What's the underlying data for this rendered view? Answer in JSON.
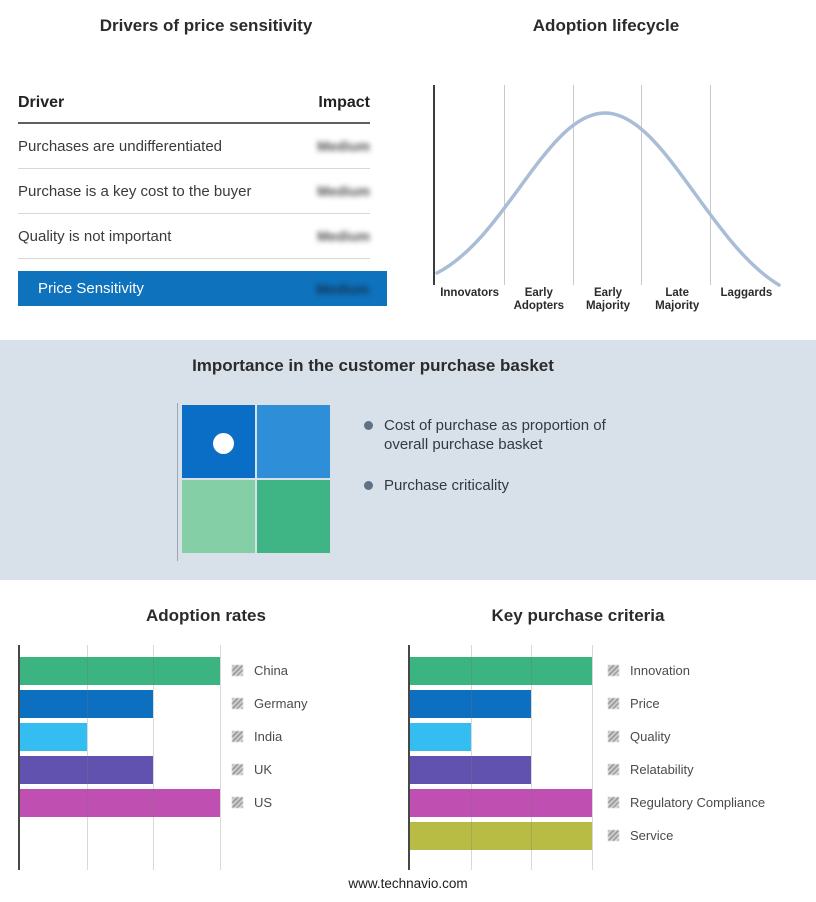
{
  "drivers_panel": {
    "title": "Drivers of price sensitivity",
    "columns": {
      "driver": "Driver",
      "impact": "Impact"
    },
    "rows": [
      {
        "driver": "Purchases are undifferentiated",
        "impact": "Medium"
      },
      {
        "driver": "Purchase is a key cost to the buyer",
        "impact": "Medium"
      },
      {
        "driver": "Quality is not important",
        "impact": "Medium"
      }
    ],
    "summary_row": {
      "label": "Price Sensitivity",
      "impact": "Medium",
      "bg_color": "#0e72bd"
    }
  },
  "lifecycle_panel": {
    "title": "Adoption lifecycle",
    "stages": [
      "Innovators",
      "Early Adopters",
      "Early Majority",
      "Late Majority",
      "Laggards"
    ],
    "curve_color": "#a9bdd6"
  },
  "basket_panel": {
    "title": "Importance in the customer purchase basket",
    "bullets": [
      "Cost of purchase as proportion of overall purchase basket",
      "Purchase criticality"
    ],
    "quadrant_colors": {
      "top_left": "#0b6ec6",
      "top_right": "#2e8fd8",
      "bottom_left": "#85cfa6",
      "bottom_right": "#3fb585"
    },
    "band_bg": "#d8e1ea"
  },
  "chart_data": [
    {
      "type": "bar",
      "title": "Adoption rates",
      "orientation": "horizontal",
      "categories": [
        "China",
        "Germany",
        "India",
        "UK",
        "US"
      ],
      "values": [
        3,
        2,
        1,
        2,
        3
      ],
      "colors": [
        "#3bb482",
        "#0d6fc0",
        "#33bdf0",
        "#6052ae",
        "#bf4fb0"
      ],
      "xlim": [
        0,
        3
      ],
      "gridlines": [
        1,
        2,
        3
      ],
      "legend_position": "right",
      "grid": true
    },
    {
      "type": "bar",
      "title": "Key purchase criteria",
      "orientation": "horizontal",
      "categories": [
        "Innovation",
        "Price",
        "Quality",
        "Relatability",
        "Regulatory Compliance",
        "Service"
      ],
      "values": [
        3,
        2,
        1,
        2,
        3,
        3
      ],
      "colors": [
        "#3bb482",
        "#0d6fc0",
        "#33bdf0",
        "#6052ae",
        "#bf4fb0",
        "#b8bb44"
      ],
      "xlim": [
        0,
        3.1
      ],
      "gridlines": [
        1,
        2,
        3
      ],
      "legend_position": "right",
      "grid": true
    }
  ],
  "footer": {
    "url": "www.technavio.com"
  }
}
